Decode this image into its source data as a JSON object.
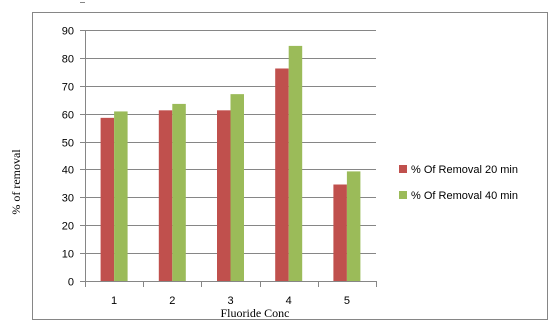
{
  "chart_data": {
    "type": "bar",
    "title": "",
    "xlabel": "Fluoride Conc",
    "ylabel": "% of removal",
    "categories": [
      "1",
      "2",
      "3",
      "4",
      "5"
    ],
    "ylim": [
      0,
      90
    ],
    "ytick_step": 10,
    "yticks": [
      "0",
      "10",
      "20",
      "30",
      "40",
      "50",
      "60",
      "70",
      "80",
      "90"
    ],
    "grid": "horizontal",
    "legend_position": "right",
    "series": [
      {
        "name": "% Of Removal  20 min",
        "color": "#c0504d",
        "values": [
          58.5,
          61.2,
          61.2,
          76.2,
          34.6
        ]
      },
      {
        "name": "% Of Removal  40 min",
        "color": "#9bbb59",
        "values": [
          60.8,
          63.5,
          67.0,
          84.3,
          39.3
        ]
      }
    ]
  }
}
